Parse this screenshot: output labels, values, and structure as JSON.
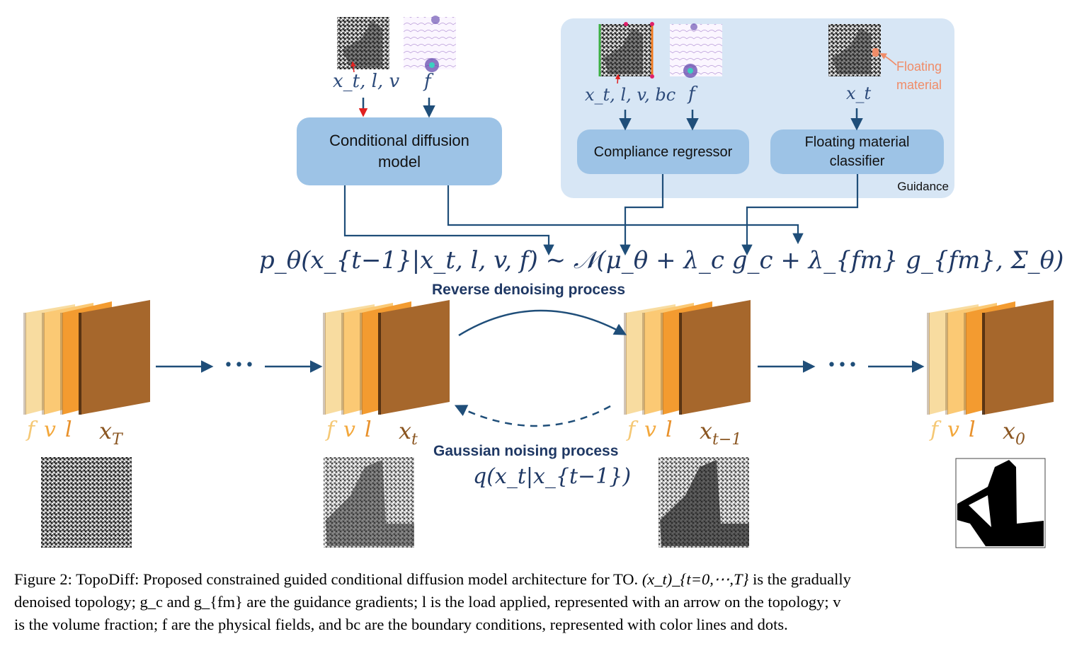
{
  "diagram": {
    "conditional_model": {
      "line1": "Conditional diffusion",
      "line2": "model"
    },
    "compliance_regressor": "Compliance regressor",
    "floating_classifier": {
      "line1": "Floating material",
      "line2": "classifier"
    },
    "guidance_label": "Guidance",
    "floating_annotation": {
      "line1": "Floating",
      "line2": "material"
    },
    "input_labels": {
      "cond_inputs": "x_t, l, v",
      "cond_field": "f",
      "reg_inputs": "x_t, l, v, bc",
      "reg_field": "f",
      "cls_input": "x_t"
    },
    "equation": "p_θ(x_{t−1}|x_t, l, v, f) ∼ 𝒩(μ_θ + λ_c g_c + λ_{fm} g_{fm}, Σ_θ)",
    "reverse_label": "Reverse denoising process",
    "gaussian_label": "Gaussian noising process",
    "gaussian_formula": "q(x_t|x_{t−1})",
    "ellipsis": "•••",
    "stacks": [
      {
        "f": "f",
        "v": "v",
        "l": "l",
        "x": "x",
        "sub": "T"
      },
      {
        "f": "f",
        "v": "v",
        "l": "l",
        "x": "x",
        "sub": "t"
      },
      {
        "f": "f",
        "v": "v",
        "l": "l",
        "x": "x",
        "sub": "t−1"
      },
      {
        "f": "f",
        "v": "v",
        "l": "l",
        "x": "x",
        "sub": "0"
      }
    ],
    "colors": {
      "panel_blue": "#9dc3e6",
      "guidance_bg": "#d7e6f5",
      "arrow": "#1f4e79",
      "layer_f": "#f8dca0",
      "layer_v": "#fbc974",
      "layer_l": "#f39b30",
      "layer_x": "#a6672c",
      "floating": "#f08c68"
    }
  },
  "caption": {
    "line1_prefix": "Figure 2: TopoDiff: Proposed constrained guided conditional diffusion model architecture for TO. ",
    "line1_math": "(x_t)_{t=0,⋯,T}",
    "line1_suffix": " is the gradually",
    "line2": "denoised topology; g_c and g_{fm} are the guidance gradients; l is the load applied, represented with an arrow on the topology; v",
    "line3": "is the volume fraction; f are the physical fields, and bc are the boundary conditions, represented with color lines and dots."
  }
}
